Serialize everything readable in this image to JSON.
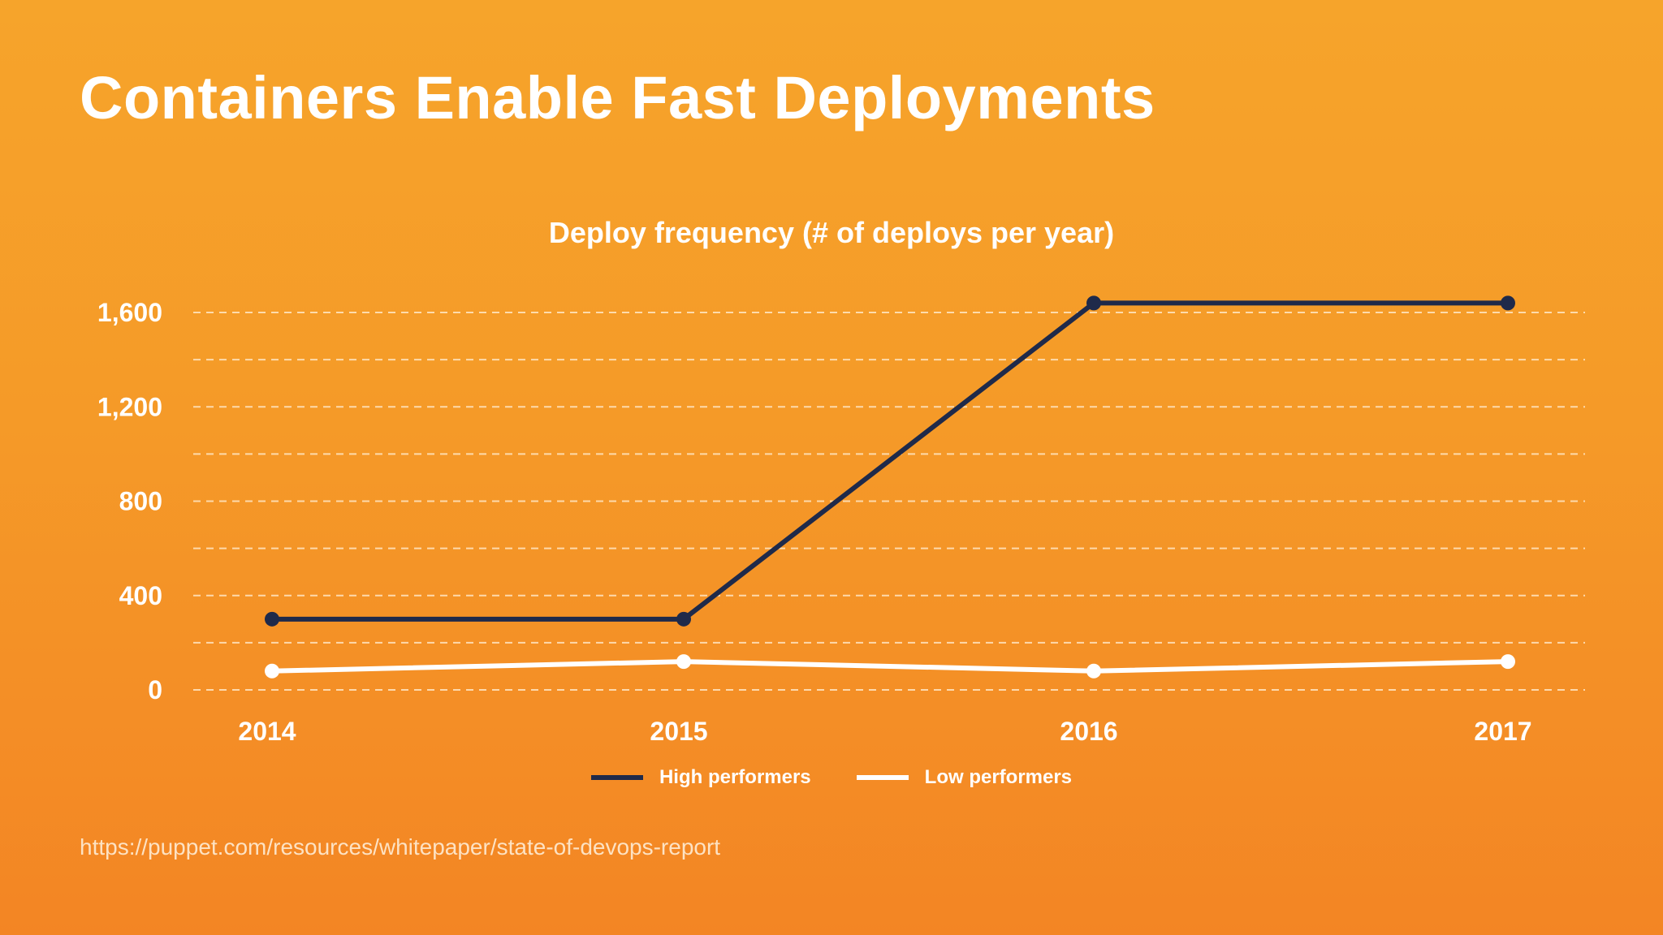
{
  "slide": {
    "title": "Containers Enable Fast Deployments",
    "source_url": "https://puppet.com/resources/whitepaper/state-of-devops-report"
  },
  "colors": {
    "background_top": "#f6a42b",
    "background_bottom": "#f38524",
    "high_performers": "#1f2a4a",
    "low_performers": "#ffffff",
    "gridline": "#ffe6c4"
  },
  "chart_data": {
    "type": "line",
    "title": "Deploy frequency (# of deploys per year)",
    "xlabel": "",
    "ylabel": "",
    "categories": [
      "2014",
      "2015",
      "2016",
      "2017"
    ],
    "series": [
      {
        "name": "High performers",
        "values": [
          300,
          300,
          1640,
          1640
        ]
      },
      {
        "name": "Low performers",
        "values": [
          80,
          120,
          80,
          120
        ]
      }
    ],
    "ylim": [
      0,
      1600
    ],
    "yticks": [
      0,
      400,
      800,
      1200,
      1600
    ],
    "ytick_labels": [
      "0",
      "400",
      "800",
      "1,200",
      "1,600"
    ],
    "grid": true,
    "grid_style": "dashed",
    "legend_position": "bottom"
  }
}
